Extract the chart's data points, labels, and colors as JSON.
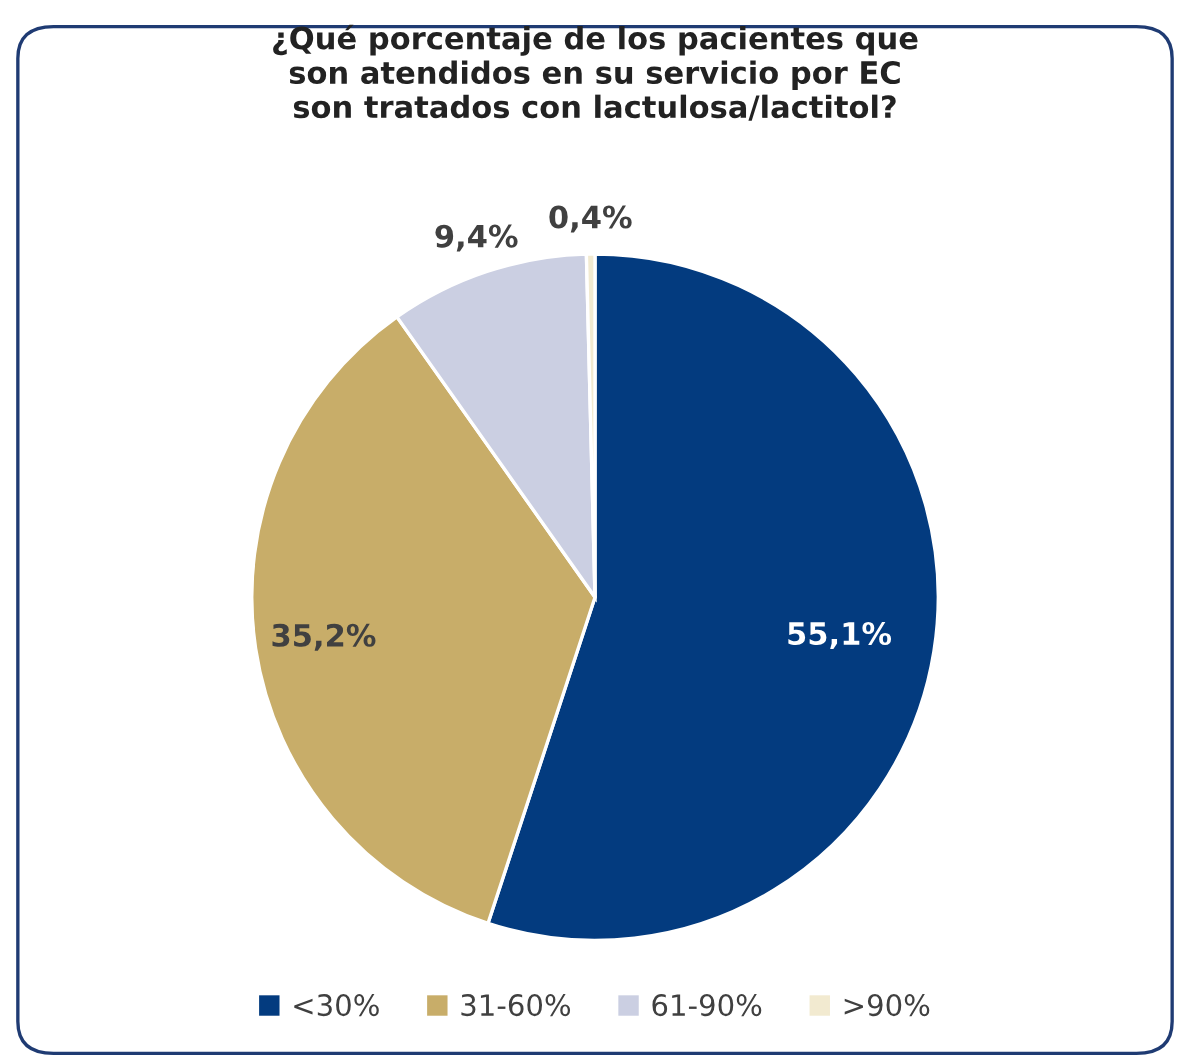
{
  "chart_data": {
    "type": "pie",
    "title": "¿Qué porcentaje de los pacientes que\nson atendidos en su servicio por EC\nson tratados con lactulosa/lactitol?",
    "categories": [
      "<30%",
      "31-60%",
      "61-90%",
      ">90%"
    ],
    "values": [
      55.1,
      35.2,
      9.4,
      0.4
    ],
    "colors": [
      "#033b7f",
      "#c8ad69",
      "#cbcfe2",
      "#f2ead0"
    ],
    "value_labels": [
      "55,1%",
      "35,2%",
      "9,4%",
      "0,4%"
    ],
    "legend": "bottom"
  }
}
